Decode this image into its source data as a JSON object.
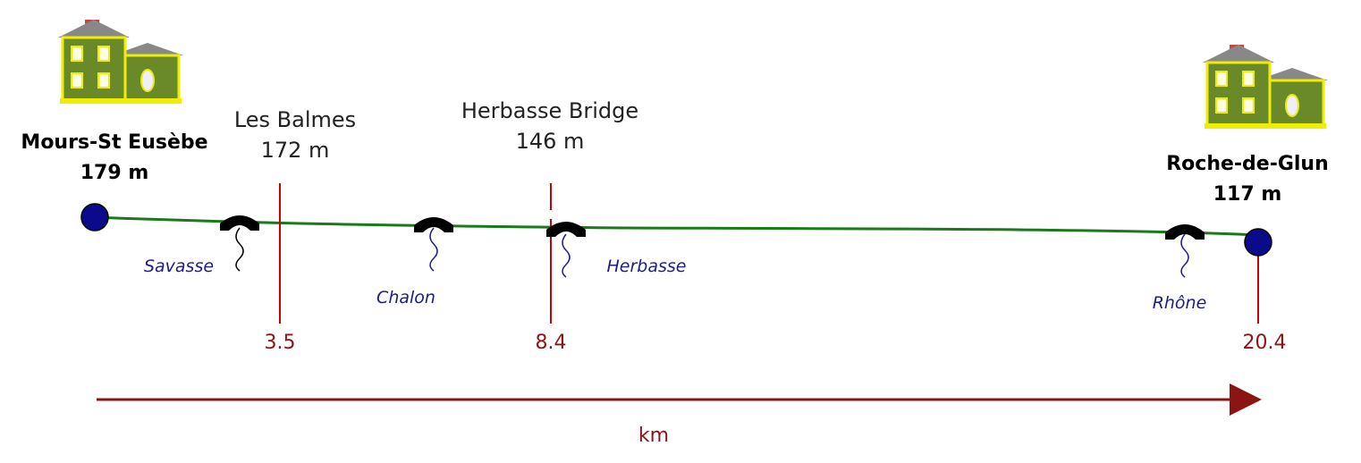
{
  "start": {
    "name": "Mours-St Eusèbe",
    "elevation": "179 m"
  },
  "end": {
    "name": "Roche-de-Glun",
    "elevation": "117 m",
    "distance": "20.4"
  },
  "waypoints": [
    {
      "name": "Les Balmes",
      "elevation": "172 m",
      "distance": "3.5"
    },
    {
      "name": "Herbasse Bridge",
      "elevation": "146 m",
      "distance": "8.4"
    }
  ],
  "rivers": [
    "Savasse",
    "Chalon",
    "Herbasse",
    "Rhône"
  ],
  "axis_label": "km"
}
